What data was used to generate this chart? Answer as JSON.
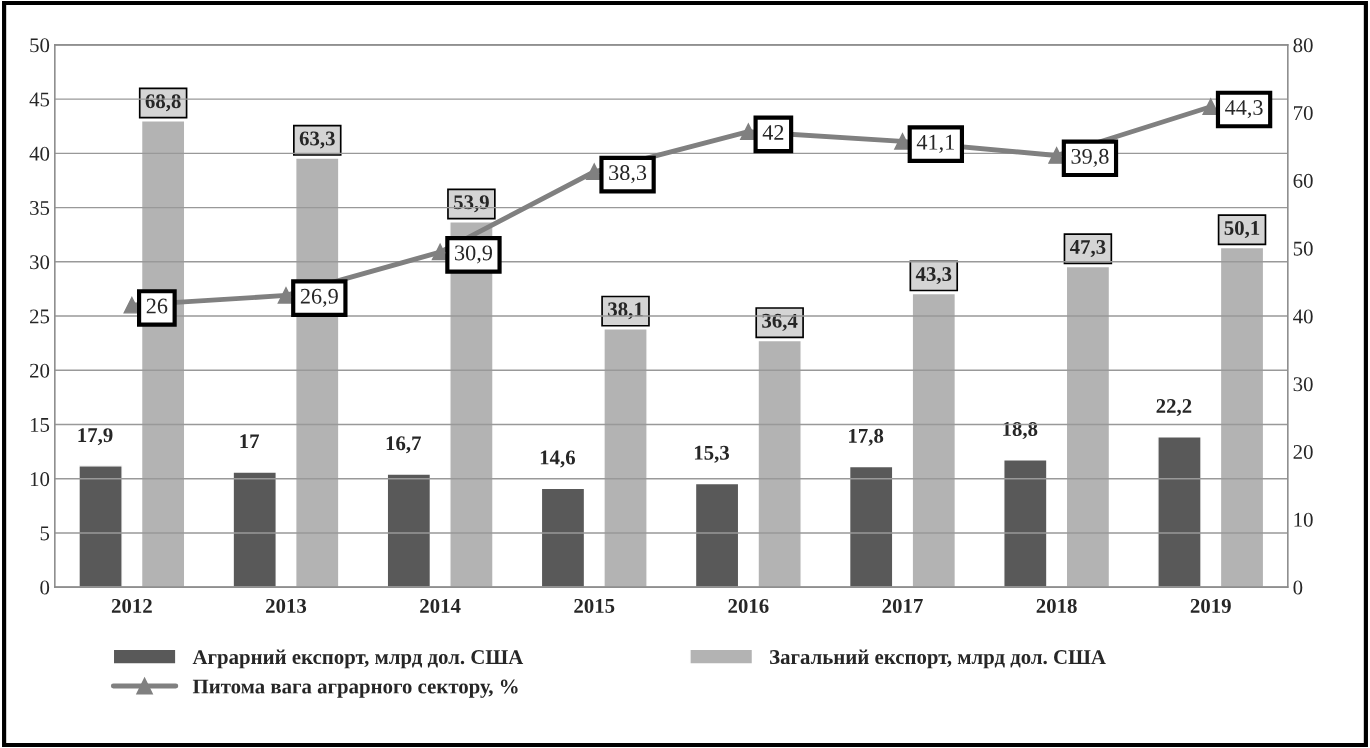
{
  "chart_data": {
    "type": "bar",
    "categories": [
      "2012",
      "2013",
      "2014",
      "2015",
      "2016",
      "2017",
      "2018",
      "2019"
    ],
    "series": [
      {
        "name": "Аграрний експорт, млрд дол. США",
        "axis": "y2",
        "color": "#595959",
        "values": [
          17.9,
          17,
          16.7,
          14.6,
          15.3,
          17.8,
          18.8,
          22.2
        ],
        "value_labels": [
          "17,9",
          "17",
          "16,7",
          "14,6",
          "15,3",
          "17,8",
          "18,8",
          "22,2"
        ]
      },
      {
        "name": "Загальний експорт, млрд дол. США",
        "axis": "y2",
        "color": "#b3b3b3",
        "values": [
          68.8,
          63.3,
          53.9,
          38.1,
          36.4,
          43.3,
          47.3,
          50.1
        ],
        "value_labels": [
          "68,8",
          "63,3",
          "53,9",
          "38,1",
          "36,4",
          "43,3",
          "47,3",
          "50,1"
        ]
      },
      {
        "name": "Питома вага аграрного сектору, %",
        "type": "line",
        "axis": "y",
        "color": "#808080",
        "marker": "triangle",
        "values": [
          26,
          26.9,
          30.9,
          38.3,
          42,
          41.1,
          39.8,
          44.3
        ],
        "value_labels": [
          "26",
          "26,9",
          "30,9",
          "38,3",
          "42",
          "41,1",
          "39,8",
          "44,3"
        ]
      }
    ],
    "ylim": [
      0,
      50
    ],
    "yticks": [
      0,
      5,
      10,
      15,
      20,
      25,
      30,
      35,
      40,
      45,
      50
    ],
    "y2lim": [
      0,
      80
    ],
    "y2ticks": [
      0,
      10,
      20,
      30,
      40,
      50,
      60,
      70,
      80
    ],
    "grid": "y",
    "legend": "bottom"
  }
}
